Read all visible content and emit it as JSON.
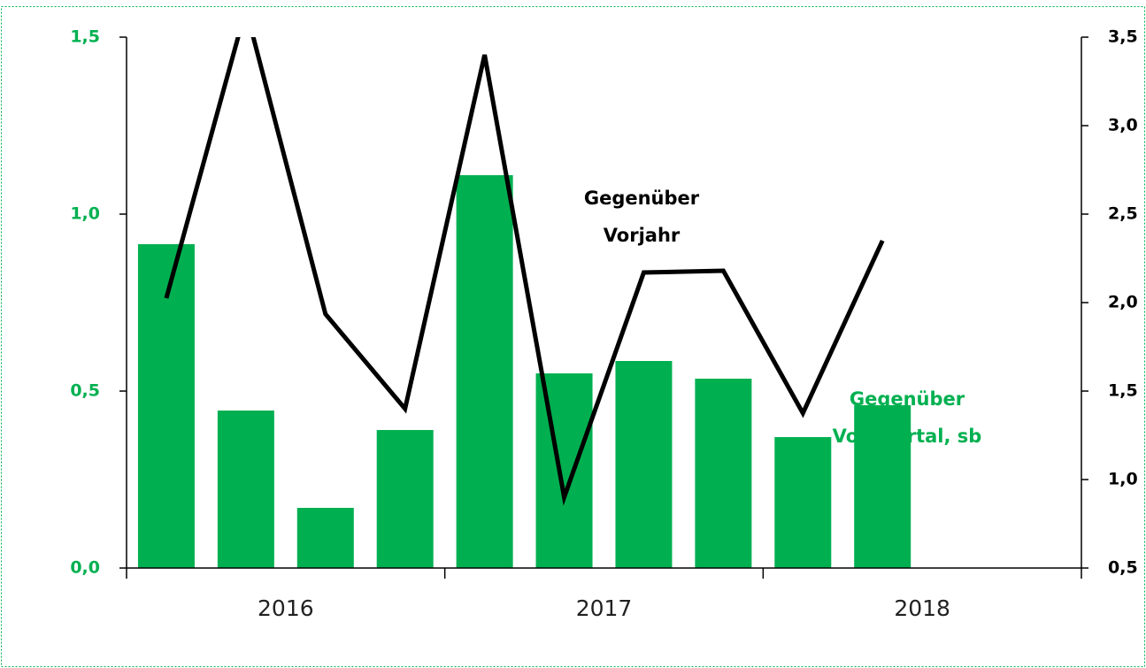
{
  "chart_data": {
    "type": "bar_line",
    "categories": [
      null,
      null,
      null,
      null,
      null,
      null,
      null,
      null,
      null,
      null,
      null,
      null
    ],
    "year_labels": [
      "2016",
      "2017",
      "2018"
    ],
    "series": [
      {
        "name": "Gegenüber Vorquartal, sb",
        "type": "bar",
        "color": "#00b050",
        "axis": "y",
        "values": [
          0.915,
          0.445,
          0.17,
          0.39,
          1.11,
          0.55,
          0.585,
          0.535,
          0.37,
          0.46,
          null,
          null
        ]
      },
      {
        "name": "Gegenüber Vorjahr",
        "type": "line",
        "color": "#000000",
        "axis": "y2",
        "values": [
          2.025,
          3.66,
          1.935,
          1.4,
          3.4,
          0.9,
          2.17,
          2.18,
          1.375,
          2.35,
          null,
          null
        ]
      }
    ],
    "annotations": [
      {
        "lines": [
          "Gegenüber",
          "Vorjahr"
        ],
        "color": "#000000"
      },
      {
        "lines": [
          "Gegenüber",
          "Vorquartal,  sb"
        ],
        "color": "#00b050"
      }
    ],
    "ylim": [
      0,
      1.5
    ],
    "yticks": [
      {
        "value": 0,
        "label": "0,0"
      },
      {
        "value": 0.5,
        "label": "0,5"
      },
      {
        "value": 1,
        "label": "1,0"
      },
      {
        "value": 1.5,
        "label": "1,5"
      }
    ],
    "y2lim": [
      0.5,
      3.5
    ],
    "y2ticks": [
      {
        "value": 0.5,
        "label": "0,5"
      },
      {
        "value": 1,
        "label": "1,0"
      },
      {
        "value": 1.5,
        "label": "1,5"
      },
      {
        "value": 2,
        "label": "2,0"
      },
      {
        "value": 2.5,
        "label": "2,5"
      },
      {
        "value": 3,
        "label": "3,0"
      },
      {
        "value": 3.5,
        "label": "3,5"
      }
    ],
    "ytick_color": "#00b050",
    "y2tick_color": "#000000"
  }
}
